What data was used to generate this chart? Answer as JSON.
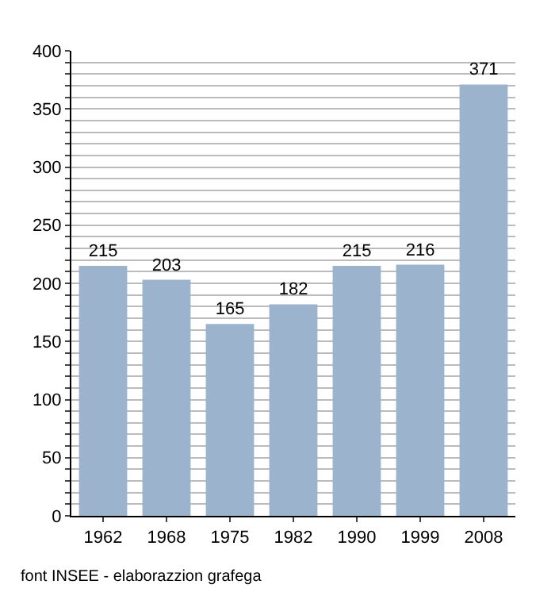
{
  "chart_data": {
    "type": "bar",
    "categories": [
      "1962",
      "1968",
      "1975",
      "1982",
      "1990",
      "1999",
      "2008"
    ],
    "values": [
      215,
      203,
      165,
      182,
      215,
      216,
      371
    ],
    "color": "#9bb3cc",
    "data_labels": true,
    "ylim": [
      0,
      400
    ],
    "yticks": [
      0,
      {
        "value": 10,
        "label": null
      },
      {
        "value": 20,
        "label": null
      },
      {
        "value": 30,
        "label": null
      },
      {
        "value": 40,
        "label": null
      },
      50,
      {
        "value": 60,
        "label": null
      },
      {
        "value": 70,
        "label": null
      },
      {
        "value": 80,
        "label": null
      },
      {
        "value": 90,
        "label": null
      },
      100,
      {
        "value": 110,
        "label": null
      },
      {
        "value": 120,
        "label": null
      },
      {
        "value": 130,
        "label": null
      },
      {
        "value": 140,
        "label": null
      },
      150,
      {
        "value": 160,
        "label": null
      },
      {
        "value": 170,
        "label": null
      },
      {
        "value": 180,
        "label": null
      },
      {
        "value": 190,
        "label": null
      },
      200,
      {
        "value": 210,
        "label": null
      },
      {
        "value": 220,
        "label": null
      },
      {
        "value": 230,
        "label": null
      },
      {
        "value": 240,
        "label": null
      },
      250,
      {
        "value": 260,
        "label": null
      },
      {
        "value": 270,
        "label": null
      },
      {
        "value": 280,
        "label": null
      },
      {
        "value": 290,
        "label": null
      },
      300,
      {
        "value": 310,
        "label": null
      },
      {
        "value": 320,
        "label": null
      },
      {
        "value": 330,
        "label": null
      },
      {
        "value": 340,
        "label": null
      },
      350,
      {
        "value": 360,
        "label": null
      },
      {
        "value": 370,
        "label": null
      },
      {
        "value": 380,
        "label": null
      },
      {
        "value": 390,
        "label": null
      },
      400
    ],
    "grid": "y",
    "annotations": [
      "font INSEE - elaborazzion grafega"
    ]
  }
}
